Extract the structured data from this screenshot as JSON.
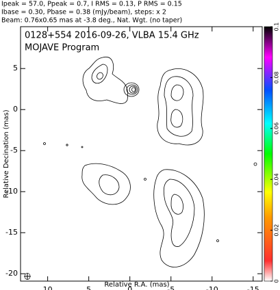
{
  "chart_data": {
    "type": "contour",
    "header": [
      "Ipeak = 57.0, Ppeak = 0.7, I RMS = 0.13, P RMS = 0.15",
      "Ibase = 0.30, Pbase = 0.38 (mJy/beam), steps: x 2",
      "Beam: 0.76x0.65 mas at -3.8 deg., Nat. Wgt. (no taper)"
    ],
    "title": "0128+554 2016-09-26, VLBA 15.4 GHz",
    "subtitle": "MOJAVE Program",
    "x_label": "Relative R.A. (mas)",
    "y_label": "Relative Decination (mas)",
    "xlim": [
      13.3,
      -16.1
    ],
    "xticks": [
      10,
      5,
      0,
      -5,
      -10,
      -15
    ],
    "ylim": [
      -20.9,
      10.1
    ],
    "yticks": [
      5,
      0,
      -5,
      -10,
      -15,
      -20
    ],
    "colorbar": {
      "lim": [
        0,
        0.1
      ],
      "ticks": [
        0,
        0.02,
        0.04,
        0.06,
        0.08,
        0.1
      ]
    }
  }
}
